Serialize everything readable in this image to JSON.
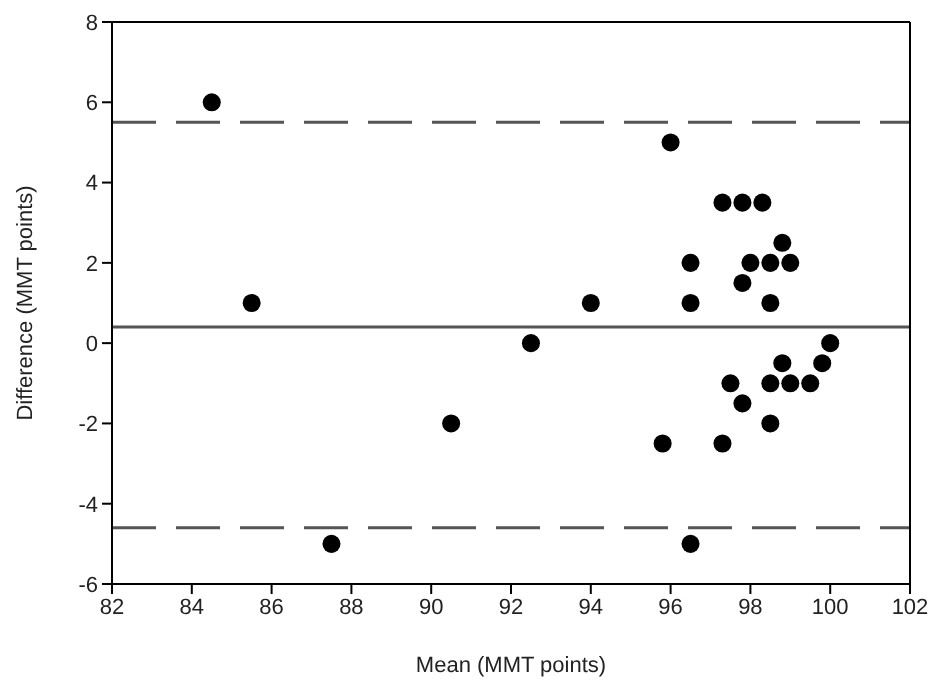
{
  "chart_data": {
    "type": "scatter",
    "xlabel": "Mean (MMT points)",
    "ylabel": "Difference (MMT points)",
    "xlim": [
      82,
      102
    ],
    "xticks": [
      82,
      84,
      86,
      88,
      90,
      92,
      94,
      96,
      98,
      100,
      102
    ],
    "ylim": [
      -6,
      8
    ],
    "yticks": [
      -6,
      -4,
      -2,
      0,
      2,
      4,
      6,
      8
    ],
    "marker": "circle",
    "series": [
      {
        "color": "#000000",
        "x": [
          84.5,
          85.5,
          87.5,
          90.5,
          92.5,
          94,
          96,
          97.3,
          97.8,
          98.3,
          98.8,
          96.5,
          98,
          98.5,
          99,
          97.8,
          96.5,
          98.5,
          100,
          98.8,
          99.8,
          97.5,
          98.5,
          99,
          99.5,
          97.8,
          98.5,
          95.8,
          97.3,
          96.5
        ],
        "values": [
          6,
          1,
          -5,
          -2,
          0,
          1,
          5,
          3.5,
          3.5,
          3.5,
          2.5,
          2,
          2,
          2,
          2,
          1.5,
          1,
          1,
          0,
          -0.5,
          -0.5,
          -1,
          -1,
          -1,
          -1,
          -1.5,
          -2,
          -2.5,
          -2.5,
          -5
        ]
      }
    ],
    "ref_lines": [
      {
        "axis": "y",
        "value": 5.5,
        "color": "#555555",
        "line_style": "dashed"
      },
      {
        "axis": "y",
        "value": 0.4,
        "color": "#555555",
        "line_style": "solid"
      },
      {
        "axis": "y",
        "value": -4.6,
        "color": "#555555",
        "line_style": "dashed"
      }
    ]
  }
}
